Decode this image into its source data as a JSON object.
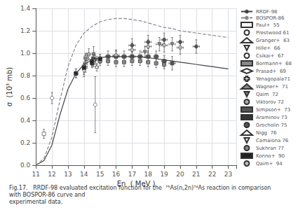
{
  "chart_data": {
    "type": "line",
    "xlabel": "En  ( MeV )",
    "ylabel": "σ  (10³ mb)",
    "caption": "Fig.17.   RRDF-98 evaluated excitation function for the  ⁷⁵As(n,2n)⁷⁴As reaction in comparison with BOSPOR-86 curve and\nexperimental data.",
    "xlim": [
      11.0,
      23.5
    ],
    "ylim": [
      0.0,
      1.4
    ],
    "xticks": [
      11,
      12,
      13,
      14,
      15,
      16,
      17,
      18,
      19,
      20,
      21,
      22,
      23
    ],
    "yticks": [
      {
        "value": 0.0,
        "label": "0.0"
      },
      0.2,
      0.4,
      0.6,
      0.8,
      {
        "value": 1.0,
        "label": "1.0"
      },
      1.2,
      1.4
    ],
    "grid": true,
    "legend": "right",
    "series": [
      {
        "name": "RRDF-98",
        "type": "line",
        "color": "#444444",
        "line_style": "solid",
        "x": [
          11.0,
          11.5,
          12.0,
          12.5,
          13.0,
          13.5,
          14.0,
          14.5,
          15.0,
          15.5,
          16.0,
          16.5,
          17.0,
          17.5,
          18.0,
          18.5,
          19.0,
          19.5,
          20.0,
          20.5,
          21.0,
          21.5,
          22.0,
          22.5,
          23.0
        ],
        "values": [
          0.0,
          0.04,
          0.18,
          0.45,
          0.68,
          0.82,
          0.9,
          0.94,
          0.96,
          0.97,
          0.97,
          0.97,
          0.97,
          0.97,
          0.96,
          0.95,
          0.94,
          0.93,
          0.92,
          0.91,
          0.9,
          0.89,
          0.88,
          0.87,
          0.86
        ]
      },
      {
        "name": "BOSPOR-86",
        "type": "line",
        "color": "#888888",
        "line_style": "dashed",
        "x": [
          11.0,
          11.5,
          12.0,
          12.5,
          13.0,
          13.5,
          14.0,
          14.5,
          15.0,
          15.5,
          16.0,
          16.5,
          17.0,
          17.5,
          18.0,
          18.5,
          19.0,
          19.5,
          20.0,
          20.5,
          21.0,
          21.5,
          22.0,
          22.5,
          23.0
        ],
        "values": [
          0.0,
          0.06,
          0.25,
          0.58,
          0.88,
          1.07,
          1.18,
          1.24,
          1.28,
          1.3,
          1.31,
          1.31,
          1.3,
          1.29,
          1.27,
          1.25,
          1.23,
          1.22,
          1.2,
          1.19,
          1.18,
          1.17,
          1.16,
          1.15,
          1.14
        ]
      },
      {
        "name": "Paul+  55",
        "type": "scatter",
        "marker": "square",
        "color": "white",
        "x": [
          11.5
        ],
        "values": [
          0.28
        ],
        "xerr": [
          0.0
        ],
        "yerr": [
          0.04
        ]
      },
      {
        "name": "Prestwood 61",
        "type": "scatter",
        "marker": "circle",
        "color": "white",
        "x": [
          12.0
        ],
        "values": [
          0.6
        ],
        "xerr": [
          0.0
        ],
        "yerr": [
          0.05
        ]
      },
      {
        "name": "Granger+  63",
        "type": "scatter",
        "marker": "triangle_up",
        "color": "white",
        "x": [
          14.1
        ],
        "values": [
          0.88
        ],
        "xerr": [
          0.1
        ],
        "yerr": [
          0.05
        ]
      },
      {
        "name": "Hille+  66",
        "type": "scatter",
        "marker": "triangle_down",
        "color": "white",
        "x": [
          14.1
        ],
        "values": [
          0.96
        ],
        "xerr": [
          0.1
        ],
        "yerr": [
          0.04
        ]
      },
      {
        "name": "Csikai+  67",
        "type": "scatter",
        "marker": "circle",
        "color": "white",
        "x": [
          14.0,
          14.7
        ],
        "values": [
          0.85,
          0.54
        ],
        "xerr": [
          0.05,
          0.05
        ],
        "yerr": [
          0.06,
          0.25
        ]
      },
      {
        "name": "Bormann+  68",
        "type": "scatter",
        "marker": "square",
        "color": "#888888",
        "x": [
          13.5,
          14.0,
          14.5,
          15.0,
          15.5,
          16.0,
          16.5,
          17.0,
          17.5,
          18.0,
          18.5,
          19.0
        ],
        "values": [
          0.82,
          0.88,
          0.92,
          0.93,
          0.93,
          0.92,
          0.92,
          0.93,
          0.93,
          0.92,
          0.91,
          0.9
        ],
        "xerr": [
          0.1,
          0.1,
          0.1,
          0.1,
          0.1,
          0.1,
          0.1,
          0.1,
          0.1,
          0.1,
          0.1,
          0.1
        ],
        "yerr": [
          0.04,
          0.04,
          0.04,
          0.04,
          0.04,
          0.04,
          0.04,
          0.04,
          0.04,
          0.04,
          0.04,
          0.04
        ]
      },
      {
        "name": "Prasad+  69",
        "type": "scatter",
        "marker": "diamond",
        "color": "white",
        "x": [
          14.0,
          14.8
        ],
        "values": [
          0.86,
          0.92
        ],
        "xerr": [
          0.05,
          0.05
        ],
        "yerr": [
          0.05,
          0.05
        ]
      },
      {
        "name": "Yenagopala71",
        "type": "scatter",
        "marker": "plus",
        "color": "white",
        "x": [
          14.2
        ],
        "values": [
          0.95
        ],
        "xerr": [
          0.1
        ],
        "yerr": [
          0.05
        ]
      },
      {
        "name": "Wagner+  71",
        "type": "scatter",
        "marker": "triangle_up",
        "color": "#888888",
        "x": [
          14.6
        ],
        "values": [
          1.0
        ],
        "xerr": [
          0.1
        ],
        "yerr": [
          0.06
        ]
      },
      {
        "name": "Qaim  72",
        "type": "scatter",
        "marker": "triangle_down",
        "color": "#888888",
        "x": [
          14.7,
          16.0,
          17.0,
          17.8,
          18.7,
          19.5
        ],
        "values": [
          0.94,
          0.97,
          0.97,
          1.01,
          1.08,
          1.08
        ],
        "xerr": [
          0.1,
          0.2,
          0.2,
          0.2,
          0.2,
          0.2
        ],
        "yerr": [
          0.04,
          0.05,
          0.05,
          0.05,
          0.06,
          0.06
        ]
      },
      {
        "name": "Viktorov 72",
        "type": "scatter",
        "marker": "circle",
        "color": "#aaaaaa",
        "x": [
          14.3
        ],
        "values": [
          0.99
        ],
        "xerr": [
          0.1
        ],
        "yerr": [
          0.05
        ]
      },
      {
        "name": "Simpson+  73",
        "type": "scatter",
        "marker": "square",
        "color": "#555555",
        "x": [
          14.6,
          15.0,
          15.5,
          16.0,
          16.5,
          17.0,
          17.5,
          18.0,
          18.5,
          19.0,
          19.5
        ],
        "values": [
          0.95,
          0.95,
          0.97,
          0.97,
          0.97,
          0.97,
          0.97,
          0.97,
          0.97,
          0.93,
          0.91
        ],
        "xerr": [
          0.1,
          0.1,
          0.15,
          0.15,
          0.15,
          0.15,
          0.15,
          0.15,
          0.15,
          0.15,
          0.2
        ],
        "yerr": [
          0.04,
          0.04,
          0.05,
          0.05,
          0.05,
          0.05,
          0.05,
          0.05,
          0.05,
          0.05,
          0.06
        ]
      },
      {
        "name": "Araminov 73",
        "type": "scatter",
        "marker": "square",
        "color": "#333333",
        "x": [
          14.5
        ],
        "values": [
          0.91
        ],
        "xerr": [
          0.1
        ],
        "yerr": [
          0.04
        ]
      },
      {
        "name": "Grocholin 75",
        "type": "scatter",
        "marker": "circle",
        "color": "#555555",
        "x": [
          14.6,
          17.0,
          18.0,
          19.0,
          20.0,
          21.0
        ],
        "values": [
          0.94,
          1.07,
          1.1,
          1.12,
          1.1,
          1.06
        ],
        "xerr": [
          0.1,
          0.2,
          0.2,
          0.2,
          0.2,
          0.2
        ],
        "yerr": [
          0.04,
          0.06,
          0.06,
          0.06,
          0.06,
          0.06
        ]
      },
      {
        "name": "Nigg  76",
        "type": "scatter",
        "marker": "triangle_up",
        "color": "white",
        "x": [
          14.8
        ],
        "values": [
          0.88
        ],
        "xerr": [
          0.1
        ],
        "yerr": [
          0.04
        ]
      },
      {
        "name": "Camaiona 76",
        "type": "scatter",
        "marker": "triangle_down",
        "color": "white",
        "x": [
          14.6
        ],
        "values": [
          0.93
        ],
        "xerr": [
          0.1
        ],
        "yerr": [
          0.05
        ]
      },
      {
        "name": "Sukhran 77",
        "type": "scatter",
        "marker": "circle",
        "color": "#888888",
        "x": [
          14.1
        ],
        "values": [
          0.95
        ],
        "xerr": [
          0.05
        ],
        "yerr": [
          0.04
        ]
      },
      {
        "name": "Konno+  90",
        "type": "scatter",
        "marker": "square",
        "color": "#222222",
        "x": [
          13.5,
          14.0,
          14.5,
          15.0
        ],
        "values": [
          0.82,
          0.87,
          0.93,
          0.95
        ],
        "xerr": [
          0.1,
          0.1,
          0.1,
          0.1
        ],
        "yerr": [
          0.04,
          0.04,
          0.04,
          0.04
        ]
      },
      {
        "name": "Qaim+  94",
        "type": "scatter",
        "marker": "circle",
        "color": "#bbbbbb",
        "x": [
          16.0,
          17.0,
          18.0,
          19.0,
          20.0
        ],
        "values": [
          0.98,
          1.03,
          1.06,
          1.07,
          1.05
        ],
        "xerr": [
          0.2,
          0.2,
          0.2,
          0.2,
          0.2
        ],
        "yerr": [
          0.05,
          0.06,
          0.06,
          0.06,
          0.06
        ]
      }
    ]
  }
}
